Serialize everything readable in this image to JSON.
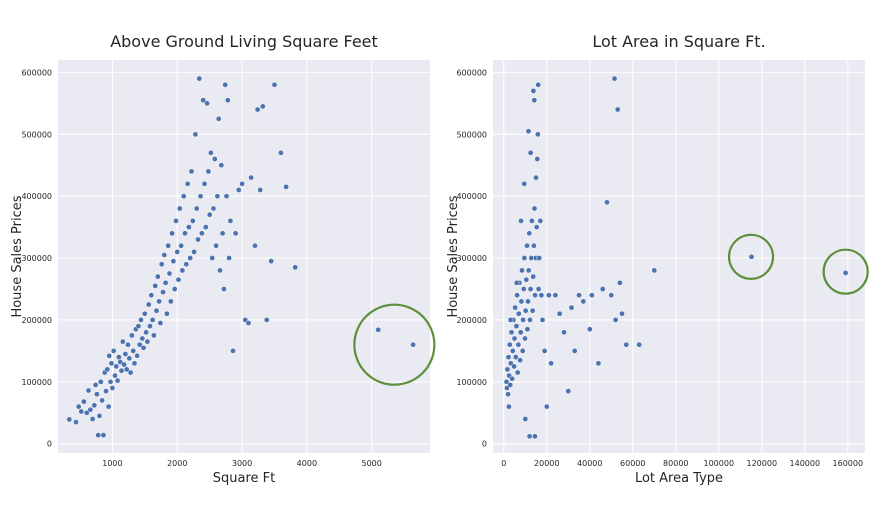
{
  "chart_data": [
    {
      "type": "scatter",
      "title": "Above Ground Living Square Feet",
      "xlabel": "Square Ft",
      "ylabel": "House Sales Prices",
      "xlim": [
        160,
        5900
      ],
      "ylim": [
        -15000,
        620000
      ],
      "xticks": [
        1000,
        2000,
        3000,
        4000,
        5000
      ],
      "yticks": [
        0,
        100000,
        200000,
        300000,
        400000,
        500000,
        600000
      ],
      "grid": true,
      "highlight": [
        {
          "x": 5350,
          "y": 160000,
          "radius": 40
        }
      ],
      "points": [
        [
          334,
          39300
        ],
        [
          438,
          35000
        ],
        [
          480,
          60000
        ],
        [
          520,
          52000
        ],
        [
          560,
          68000
        ],
        [
          605,
          50000
        ],
        [
          630,
          86000
        ],
        [
          660,
          55000
        ],
        [
          694,
          40000
        ],
        [
          720,
          62000
        ],
        [
          740,
          95000
        ],
        [
          760,
          80000
        ],
        [
          780,
          14000
        ],
        [
          800,
          45000
        ],
        [
          820,
          100000
        ],
        [
          840,
          70000
        ],
        [
          860,
          14000
        ],
        [
          880,
          115000
        ],
        [
          900,
          85000
        ],
        [
          920,
          120000
        ],
        [
          940,
          60000
        ],
        [
          950,
          142000
        ],
        [
          970,
          100000
        ],
        [
          985,
          130000
        ],
        [
          1000,
          90000
        ],
        [
          1020,
          150000
        ],
        [
          1040,
          110000
        ],
        [
          1060,
          125000
        ],
        [
          1080,
          102000
        ],
        [
          1100,
          140000
        ],
        [
          1120,
          132000
        ],
        [
          1140,
          118000
        ],
        [
          1160,
          165000
        ],
        [
          1180,
          128000
        ],
        [
          1200,
          145000
        ],
        [
          1220,
          120000
        ],
        [
          1240,
          160000
        ],
        [
          1260,
          138000
        ],
        [
          1280,
          115000
        ],
        [
          1300,
          175000
        ],
        [
          1320,
          150000
        ],
        [
          1340,
          130000
        ],
        [
          1360,
          185000
        ],
        [
          1380,
          142000
        ],
        [
          1400,
          190000
        ],
        [
          1420,
          160000
        ],
        [
          1440,
          200000
        ],
        [
          1460,
          170000
        ],
        [
          1480,
          155000
        ],
        [
          1500,
          210000
        ],
        [
          1520,
          180000
        ],
        [
          1540,
          165000
        ],
        [
          1560,
          225000
        ],
        [
          1580,
          190000
        ],
        [
          1600,
          240000
        ],
        [
          1620,
          200000
        ],
        [
          1640,
          175000
        ],
        [
          1660,
          255000
        ],
        [
          1680,
          215000
        ],
        [
          1700,
          270000
        ],
        [
          1720,
          230000
        ],
        [
          1740,
          195000
        ],
        [
          1760,
          290000
        ],
        [
          1780,
          245000
        ],
        [
          1800,
          305000
        ],
        [
          1820,
          260000
        ],
        [
          1840,
          210000
        ],
        [
          1860,
          320000
        ],
        [
          1880,
          275000
        ],
        [
          1900,
          230000
        ],
        [
          1920,
          340000
        ],
        [
          1940,
          295000
        ],
        [
          1960,
          250000
        ],
        [
          1980,
          360000
        ],
        [
          2000,
          310000
        ],
        [
          2020,
          265000
        ],
        [
          2040,
          380000
        ],
        [
          2060,
          320000
        ],
        [
          2080,
          280000
        ],
        [
          2100,
          400000
        ],
        [
          2120,
          340000
        ],
        [
          2140,
          290000
        ],
        [
          2160,
          420000
        ],
        [
          2180,
          350000
        ],
        [
          2200,
          300000
        ],
        [
          2220,
          440000
        ],
        [
          2240,
          360000
        ],
        [
          2260,
          310000
        ],
        [
          2280,
          500000
        ],
        [
          2300,
          380000
        ],
        [
          2320,
          330000
        ],
        [
          2340,
          590000
        ],
        [
          2360,
          400000
        ],
        [
          2380,
          340000
        ],
        [
          2400,
          555000
        ],
        [
          2420,
          420000
        ],
        [
          2440,
          350000
        ],
        [
          2460,
          550000
        ],
        [
          2480,
          440000
        ],
        [
          2500,
          370000
        ],
        [
          2520,
          470000
        ],
        [
          2540,
          300000
        ],
        [
          2560,
          380000
        ],
        [
          2580,
          460000
        ],
        [
          2600,
          320000
        ],
        [
          2620,
          400000
        ],
        [
          2640,
          525000
        ],
        [
          2660,
          280000
        ],
        [
          2680,
          450000
        ],
        [
          2700,
          340000
        ],
        [
          2720,
          250000
        ],
        [
          2740,
          580000
        ],
        [
          2760,
          400000
        ],
        [
          2780,
          555000
        ],
        [
          2800,
          300000
        ],
        [
          2820,
          360000
        ],
        [
          2860,
          150000
        ],
        [
          2900,
          340000
        ],
        [
          2950,
          410000
        ],
        [
          3000,
          420000
        ],
        [
          3050,
          200000
        ],
        [
          3100,
          195000
        ],
        [
          3140,
          430000
        ],
        [
          3200,
          320000
        ],
        [
          3240,
          540000
        ],
        [
          3280,
          410000
        ],
        [
          3320,
          545000
        ],
        [
          3380,
          200000
        ],
        [
          3450,
          295000
        ],
        [
          3500,
          580000
        ],
        [
          3600,
          470000
        ],
        [
          3680,
          415000
        ],
        [
          3820,
          285000
        ],
        [
          5100,
          184000
        ],
        [
          5640,
          160000
        ]
      ]
    },
    {
      "type": "scatter",
      "title": "Lot Area in Square Ft.",
      "xlabel": "Lot Area Type",
      "ylabel": "House Sales Prices",
      "xlim": [
        -5000,
        168000
      ],
      "ylim": [
        -15000,
        620000
      ],
      "xticks": [
        0,
        20000,
        40000,
        60000,
        80000,
        100000,
        120000,
        140000,
        160000
      ],
      "yticks": [
        0,
        100000,
        200000,
        300000,
        400000,
        500000,
        600000
      ],
      "grid": true,
      "highlight": [
        {
          "x": 115000,
          "y": 302000,
          "radius": 22
        },
        {
          "x": 159000,
          "y": 278000,
          "radius": 22
        }
      ],
      "points": [
        [
          1300,
          100000
        ],
        [
          1500,
          90000
        ],
        [
          1700,
          120000
        ],
        [
          2000,
          80000
        ],
        [
          2200,
          140000
        ],
        [
          2500,
          110000
        ],
        [
          2800,
          160000
        ],
        [
          3000,
          95000
        ],
        [
          3300,
          130000
        ],
        [
          3600,
          180000
        ],
        [
          3900,
          105000
        ],
        [
          4200,
          150000
        ],
        [
          4500,
          200000
        ],
        [
          4800,
          125000
        ],
        [
          5000,
          170000
        ],
        [
          5300,
          220000
        ],
        [
          5600,
          140000
        ],
        [
          5900,
          190000
        ],
        [
          6200,
          240000
        ],
        [
          6500,
          115000
        ],
        [
          6800,
          160000
        ],
        [
          7000,
          210000
        ],
        [
          7300,
          260000
        ],
        [
          7600,
          135000
        ],
        [
          7900,
          180000
        ],
        [
          8200,
          230000
        ],
        [
          8500,
          280000
        ],
        [
          8800,
          150000
        ],
        [
          9000,
          200000
        ],
        [
          9300,
          250000
        ],
        [
          9600,
          300000
        ],
        [
          9900,
          170000
        ],
        [
          10200,
          215000
        ],
        [
          10500,
          265000
        ],
        [
          10800,
          320000
        ],
        [
          11000,
          185000
        ],
        [
          11300,
          230000
        ],
        [
          11600,
          280000
        ],
        [
          11900,
          340000
        ],
        [
          12200,
          200000
        ],
        [
          12500,
          250000
        ],
        [
          12800,
          300000
        ],
        [
          13100,
          360000
        ],
        [
          13400,
          215000
        ],
        [
          13700,
          270000
        ],
        [
          14000,
          320000
        ],
        [
          14300,
          380000
        ],
        [
          14600,
          240000
        ],
        [
          14900,
          300000
        ],
        [
          15000,
          430000
        ],
        [
          15300,
          350000
        ],
        [
          15600,
          460000
        ],
        [
          15900,
          500000
        ],
        [
          16200,
          250000
        ],
        [
          16500,
          300000
        ],
        [
          17000,
          360000
        ],
        [
          17500,
          240000
        ],
        [
          18000,
          200000
        ],
        [
          19000,
          150000
        ],
        [
          20000,
          60000
        ],
        [
          21000,
          240000
        ],
        [
          22000,
          130000
        ],
        [
          24000,
          240000
        ],
        [
          26000,
          210000
        ],
        [
          28000,
          180000
        ],
        [
          30000,
          85000
        ],
        [
          31500,
          220000
        ],
        [
          33000,
          150000
        ],
        [
          35000,
          240000
        ],
        [
          37000,
          230000
        ],
        [
          40000,
          185000
        ],
        [
          41000,
          240000
        ],
        [
          44000,
          130000
        ],
        [
          46000,
          250000
        ],
        [
          48000,
          390000
        ],
        [
          50000,
          240000
        ],
        [
          51500,
          590000
        ],
        [
          52000,
          200000
        ],
        [
          53000,
          540000
        ],
        [
          54000,
          260000
        ],
        [
          55000,
          210000
        ],
        [
          57000,
          160000
        ],
        [
          63000,
          160000
        ],
        [
          70000,
          280000
        ],
        [
          115200,
          302000
        ],
        [
          159000,
          276000
        ],
        [
          12000,
          12000
        ],
        [
          14500,
          12000
        ],
        [
          10000,
          40000
        ],
        [
          12500,
          470000
        ],
        [
          13800,
          570000
        ],
        [
          16000,
          580000
        ],
        [
          11500,
          505000
        ],
        [
          9500,
          420000
        ],
        [
          14200,
          555000
        ],
        [
          8000,
          360000
        ],
        [
          6000,
          260000
        ],
        [
          3200,
          200000
        ],
        [
          2400,
          60000
        ]
      ]
    }
  ]
}
